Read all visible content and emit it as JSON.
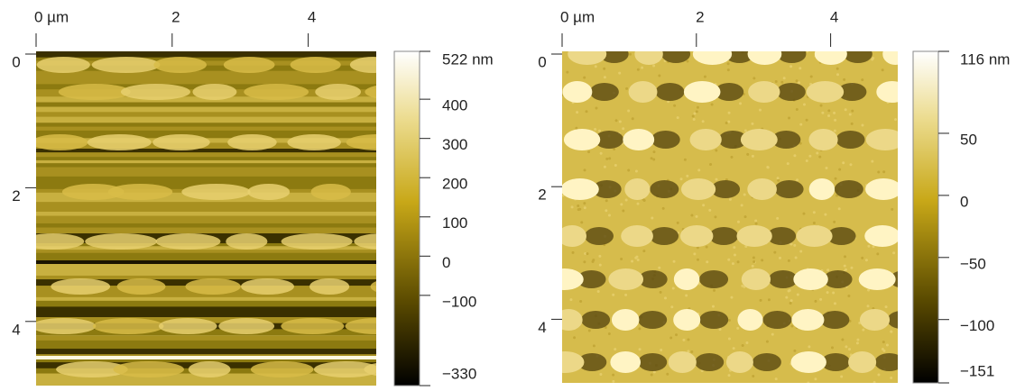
{
  "chart_data": [
    {
      "type": "heatmap",
      "xlim": [
        0,
        5
      ],
      "xticks": [
        {
          "value": 0,
          "label": "0 µm"
        },
        2,
        4
      ],
      "ylim": [
        0,
        5
      ],
      "yticks": [
        0,
        2,
        4
      ],
      "colorbar": {
        "lim": [
          -330,
          522
        ],
        "ticks": [
          {
            "value": 522,
            "label": "522 nm"
          },
          400,
          300,
          200,
          100,
          0,
          {
            "value": -100,
            "label": "−100"
          },
          {
            "value": -330,
            "label": "−330"
          }
        ]
      }
    },
    {
      "type": "heatmap",
      "xlim": [
        0,
        5
      ],
      "xticks": [
        {
          "value": 0,
          "label": "0 µm"
        },
        2,
        4
      ],
      "ylim": [
        0,
        5
      ],
      "yticks": [
        0,
        2,
        4
      ],
      "colorbar": {
        "lim": [
          -151,
          116
        ],
        "ticks": [
          {
            "value": 116,
            "label": "116 nm"
          },
          50,
          0,
          {
            "value": -50,
            "label": "−50"
          },
          {
            "value": -100,
            "label": "−100"
          },
          {
            "value": -151,
            "label": "−151"
          }
        ]
      }
    }
  ]
}
